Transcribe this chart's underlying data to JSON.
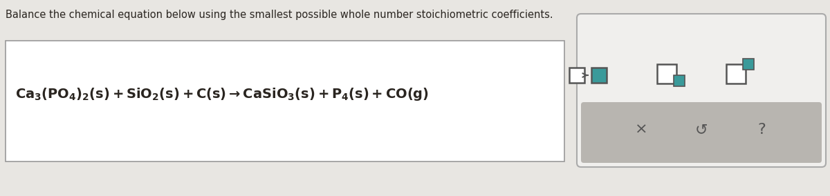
{
  "title": "Balance the chemical equation below using the smallest possible whole number stoichiometric coefficients.",
  "title_fontsize": 10.5,
  "bg_color": "#e8e6e2",
  "white_color": "#ffffff",
  "panel_bg": "#e0dedd",
  "panel_top_bg": "#f0efed",
  "panel_bottom_bg": "#b8b5b0",
  "teal_color": "#3a9a9a",
  "text_color": "#2a2520",
  "border_color": "#aaaaaa",
  "eq_text_color": "#2a2520",
  "icon_border": "#555555"
}
